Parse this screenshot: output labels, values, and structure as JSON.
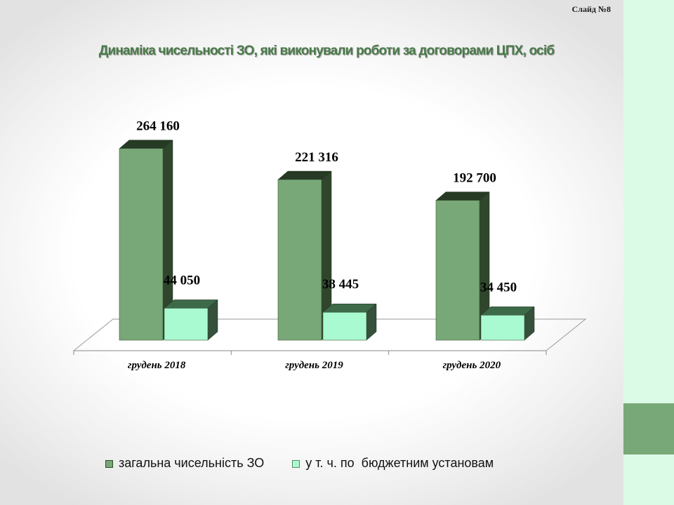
{
  "slide_number": "Слайд №8",
  "colors": {
    "series_total_front": "#78a877",
    "series_total_top": "#263a24",
    "series_total_side": "#2f462c",
    "series_budget_front": "#a9fad0",
    "series_budget_top": "#3d6a48",
    "series_budget_side": "#35503b",
    "sidebar": "#dcfbe6",
    "sidebar_accent": "#78a877",
    "title": "#4a7a4a"
  },
  "chart_data": {
    "type": "bar",
    "title": "Динаміка чисельності ЗО, які виконували роботи за договорами ЦПХ, осіб",
    "categories": [
      "грудень 2018",
      "грудень 2019",
      "грудень 2020"
    ],
    "series": [
      {
        "name": "загальна чисельність ЗО",
        "values": [
          264160,
          221316,
          192700
        ],
        "labels": [
          "264 160",
          "221 316",
          "192 700"
        ]
      },
      {
        "name": "у т. ч. по  бюджетним установам",
        "values": [
          44050,
          38445,
          34450
        ],
        "labels": [
          "44 050",
          "38 445",
          "34 450"
        ]
      }
    ],
    "ylim": [
      0,
      290000
    ],
    "grid": false,
    "legend": "bottom",
    "style": "3d-columns"
  }
}
